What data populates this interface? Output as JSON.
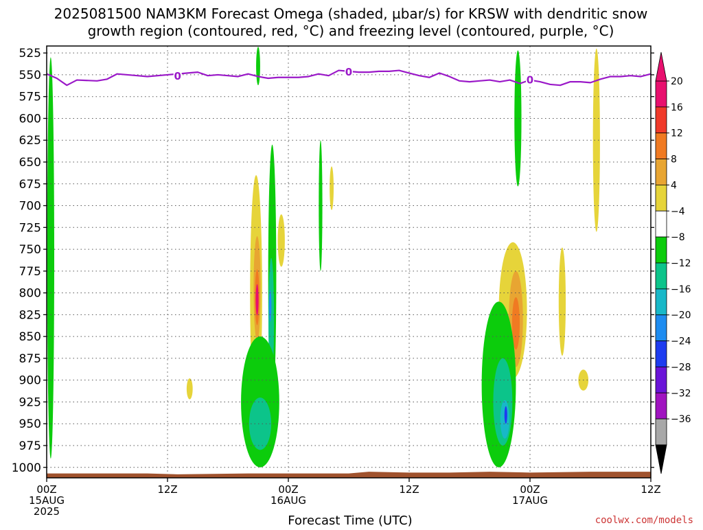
{
  "title_line1": "2025081500 NAM3KM Forecast Omega (shaded, µbar/s) for KRSW with dendritic snow",
  "title_line2": "growth region (contoured, red, °C) and freezing level (contoured, purple, °C)",
  "credit": "coolwx.com/models",
  "chart_data": {
    "type": "heatmap",
    "xlabel": "Forecast Time (UTC)",
    "ylabel": "",
    "x_range_hours": [
      0,
      60
    ],
    "y_range_mb": [
      517,
      1012
    ],
    "y_scale": "linear, inverted (pressure)",
    "grid": true,
    "y_ticks": [
      525,
      550,
      575,
      600,
      625,
      650,
      675,
      700,
      725,
      750,
      775,
      800,
      825,
      850,
      875,
      900,
      925,
      950,
      975,
      1000
    ],
    "x_ticks": [
      {
        "hour": 0,
        "line1": "00Z",
        "line2": "15AUG",
        "line3": "2025"
      },
      {
        "hour": 12,
        "line1": "12Z",
        "line2": "",
        "line3": ""
      },
      {
        "hour": 24,
        "line1": "00Z",
        "line2": "16AUG",
        "line3": ""
      },
      {
        "hour": 36,
        "line1": "12Z",
        "line2": "",
        "line3": ""
      },
      {
        "hour": 48,
        "line1": "00Z",
        "line2": "17AUG",
        "line3": ""
      },
      {
        "hour": 60,
        "line1": "12Z",
        "line2": "",
        "line3": ""
      }
    ],
    "colorbar": {
      "levels": [
        "20",
        "16",
        "12",
        "8",
        "4",
        "−4",
        "−8",
        "−12",
        "−16",
        "−20",
        "−24",
        "−28",
        "−32",
        "−36"
      ],
      "colors": [
        "#e8106e",
        "#f03a2a",
        "#f07a22",
        "#e8a532",
        "#e6d43a",
        "#ffffff",
        "#0ccc0c",
        "#0cc48a",
        "#18b8c8",
        "#1e8cf0",
        "#1e3cf0",
        "#6a14d8",
        "#a014c0",
        "#a8a8a8"
      ],
      "extend_colors": {
        "max": "#e8106e",
        "min": "#000000"
      }
    },
    "freezing_level": {
      "label": "0",
      "color": "#9a18c8",
      "points": [
        [
          0,
          549
        ],
        [
          1,
          554
        ],
        [
          2,
          562
        ],
        [
          3,
          556
        ],
        [
          5,
          557
        ],
        [
          6,
          555
        ],
        [
          7,
          549
        ],
        [
          9,
          551
        ],
        [
          10,
          552
        ],
        [
          12,
          550
        ],
        [
          13,
          549
        ],
        [
          14,
          548
        ],
        [
          15,
          547
        ],
        [
          16,
          551
        ],
        [
          17,
          550
        ],
        [
          18,
          551
        ],
        [
          19,
          552
        ],
        [
          20,
          549
        ],
        [
          21,
          552
        ],
        [
          22,
          554
        ],
        [
          23,
          553
        ],
        [
          24,
          553
        ],
        [
          25,
          553
        ],
        [
          26,
          552
        ],
        [
          27,
          549
        ],
        [
          28,
          551
        ],
        [
          29,
          545
        ],
        [
          30,
          546
        ],
        [
          31,
          547
        ],
        [
          32,
          547
        ],
        [
          33,
          546
        ],
        [
          34,
          546
        ],
        [
          35,
          545
        ],
        [
          36,
          548
        ],
        [
          37,
          551
        ],
        [
          38,
          553
        ],
        [
          39,
          548
        ],
        [
          40,
          552
        ],
        [
          41,
          557
        ],
        [
          42,
          558
        ],
        [
          43,
          557
        ],
        [
          44,
          556
        ],
        [
          45,
          558
        ],
        [
          46,
          556
        ],
        [
          47,
          560
        ],
        [
          48,
          556
        ],
        [
          49,
          558
        ],
        [
          50,
          561
        ],
        [
          51,
          562
        ],
        [
          52,
          558
        ],
        [
          53,
          558
        ],
        [
          54,
          559
        ],
        [
          55,
          555
        ],
        [
          56,
          552
        ],
        [
          57,
          552
        ],
        [
          58,
          551
        ],
        [
          59,
          552
        ],
        [
          60,
          549
        ]
      ],
      "label_points": [
        [
          13,
          551
        ],
        [
          30,
          546
        ],
        [
          48,
          555
        ]
      ]
    },
    "omega_features": [
      {
        "name": "edge-green",
        "value": -6,
        "hour": 0.4,
        "p": 760,
        "rx_h": 0.35,
        "ry_mb": 230
      },
      {
        "name": "top-green-strip-1",
        "value": -6,
        "hour": 21,
        "p": 540,
        "rx_h": 0.2,
        "ry_mb": 22
      },
      {
        "name": "top-green-strip-2",
        "value": -6,
        "hour": 46.8,
        "p": 600,
        "rx_h": 0.35,
        "ry_mb": 78
      },
      {
        "name": "yellow-upper-right",
        "value": 5,
        "hour": 54.6,
        "p": 625,
        "rx_h": 0.35,
        "ry_mb": 105
      },
      {
        "name": "yellow-small-1",
        "value": 5,
        "hour": 14.2,
        "p": 910,
        "rx_h": 0.3,
        "ry_mb": 12
      },
      {
        "name": "green-thin-mid",
        "value": -6,
        "hour": 27.2,
        "p": 700,
        "rx_h": 0.18,
        "ry_mb": 75
      },
      {
        "name": "yellow-thin-mid",
        "value": 5,
        "hour": 28.3,
        "p": 680,
        "rx_h": 0.2,
        "ry_mb": 25
      },
      {
        "name": "yellow-d1-upper",
        "value": 5,
        "hour": 20.8,
        "p": 800,
        "rx_h": 0.6,
        "ry_mb": 135
      },
      {
        "name": "orange-d1",
        "value": 10,
        "hour": 20.9,
        "p": 795,
        "rx_h": 0.35,
        "ry_mb": 60
      },
      {
        "name": "red-d1",
        "value": 15,
        "hour": 20.9,
        "p": 805,
        "rx_h": 0.22,
        "ry_mb": 32
      },
      {
        "name": "magenta-d1",
        "value": 20,
        "hour": 20.9,
        "p": 808,
        "rx_h": 0.14,
        "ry_mb": 18
      },
      {
        "name": "green-d1-right",
        "value": -6,
        "hour": 22.4,
        "p": 780,
        "rx_h": 0.4,
        "ry_mb": 150
      },
      {
        "name": "teal-d1-right",
        "value": -10,
        "hour": 22.3,
        "p": 830,
        "rx_h": 0.28,
        "ry_mb": 70
      },
      {
        "name": "blue-d1-right",
        "value": -18,
        "hour": 22.2,
        "p": 815,
        "rx_h": 0.12,
        "ry_mb": 18
      },
      {
        "name": "yellow-d1-right",
        "value": 5,
        "hour": 23.3,
        "p": 740,
        "rx_h": 0.35,
        "ry_mb": 30
      },
      {
        "name": "green-d1-lower",
        "value": -6,
        "hour": 21.2,
        "p": 925,
        "rx_h": 1.9,
        "ry_mb": 75
      },
      {
        "name": "teal-d1-lower",
        "value": -10,
        "hour": 21.2,
        "p": 950,
        "rx_h": 1.1,
        "ry_mb": 30
      },
      {
        "name": "yellow-d2",
        "value": 5,
        "hour": 46.3,
        "p": 820,
        "rx_h": 1.4,
        "ry_mb": 78
      },
      {
        "name": "orange-d2",
        "value": 10,
        "hour": 46.6,
        "p": 830,
        "rx_h": 0.7,
        "ry_mb": 55
      },
      {
        "name": "red-d2",
        "value": 15,
        "hour": 46.6,
        "p": 835,
        "rx_h": 0.38,
        "ry_mb": 30
      },
      {
        "name": "green-d2",
        "value": -6,
        "hour": 44.9,
        "p": 905,
        "rx_h": 1.7,
        "ry_mb": 95
      },
      {
        "name": "teal-d2",
        "value": -10,
        "hour": 45.3,
        "p": 925,
        "rx_h": 0.95,
        "ry_mb": 50
      },
      {
        "name": "cyan-d2",
        "value": -14,
        "hour": 45.5,
        "p": 945,
        "rx_h": 0.45,
        "ry_mb": 22
      },
      {
        "name": "blue-d2",
        "value": -20,
        "hour": 45.6,
        "p": 940,
        "rx_h": 0.14,
        "ry_mb": 10
      },
      {
        "name": "yellow-d2-far-right",
        "value": 5,
        "hour": 51.2,
        "p": 810,
        "rx_h": 0.35,
        "ry_mb": 62
      },
      {
        "name": "yellow-small-2",
        "value": 5,
        "hour": 53.3,
        "p": 900,
        "rx_h": 0.5,
        "ry_mb": 12
      }
    ],
    "terrain": {
      "color": "#a0522d",
      "points": [
        [
          0,
          1007
        ],
        [
          10,
          1007
        ],
        [
          13,
          1008
        ],
        [
          20,
          1007
        ],
        [
          30,
          1007
        ],
        [
          32,
          1005
        ],
        [
          36,
          1006
        ],
        [
          40,
          1006
        ],
        [
          44,
          1005
        ],
        [
          48,
          1006
        ],
        [
          54,
          1005
        ],
        [
          60,
          1005
        ]
      ]
    }
  }
}
